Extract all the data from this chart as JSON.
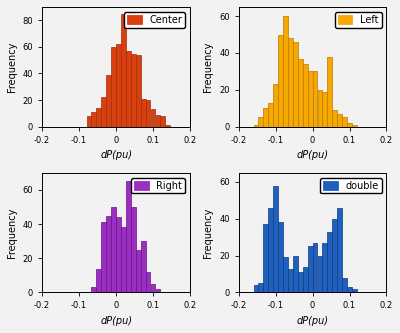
{
  "subplots": [
    {
      "label": "Center",
      "color": "#D94010",
      "edge_color": "#A03008",
      "bar_heights": [
        0,
        0,
        0,
        0,
        0,
        0,
        0,
        0,
        0,
        8,
        11,
        14,
        22,
        39,
        60,
        62,
        85,
        57,
        55,
        54,
        21,
        20,
        13,
        9,
        8,
        1,
        0,
        0,
        0,
        0
      ],
      "xlim": [
        -0.2,
        0.2
      ],
      "ylim": [
        0,
        90
      ],
      "yticks": [
        0,
        20,
        40,
        60,
        80
      ],
      "xticks": [
        -0.2,
        -0.1,
        0.0,
        0.1,
        0.2
      ]
    },
    {
      "label": "Left",
      "color": "#F5A800",
      "edge_color": "#C07800",
      "bar_heights": [
        0,
        0,
        0,
        1,
        5,
        10,
        13,
        23,
        50,
        60,
        48,
        46,
        37,
        34,
        30,
        30,
        20,
        19,
        38,
        9,
        7,
        5,
        2,
        1,
        0,
        0,
        0,
        0,
        0,
        0
      ],
      "xlim": [
        -0.2,
        0.2
      ],
      "ylim": [
        0,
        65
      ],
      "yticks": [
        0,
        20,
        40,
        60
      ],
      "xticks": [
        -0.2,
        -0.1,
        0.0,
        0.1,
        0.2
      ]
    },
    {
      "label": "Right",
      "color": "#9B30C0",
      "edge_color": "#6B1090",
      "bar_heights": [
        0,
        0,
        0,
        0,
        0,
        0,
        0,
        0,
        0,
        0,
        3,
        14,
        41,
        45,
        50,
        44,
        38,
        65,
        50,
        25,
        30,
        12,
        5,
        2,
        0,
        0,
        0,
        0,
        0,
        0
      ],
      "xlim": [
        -0.2,
        0.2
      ],
      "ylim": [
        0,
        70
      ],
      "yticks": [
        0,
        20,
        40,
        60
      ],
      "xticks": [
        -0.2,
        -0.1,
        0.0,
        0.1,
        0.2
      ]
    },
    {
      "label": "double",
      "color": "#2060C0",
      "edge_color": "#0D3D7A",
      "bar_heights": [
        0,
        0,
        0,
        4,
        5,
        37,
        46,
        58,
        38,
        19,
        13,
        20,
        11,
        14,
        25,
        27,
        20,
        27,
        33,
        40,
        46,
        8,
        3,
        2,
        0,
        0,
        0,
        0,
        0,
        0
      ],
      "xlim": [
        -0.2,
        0.2
      ],
      "ylim": [
        0,
        65
      ],
      "yticks": [
        0,
        20,
        40,
        60
      ],
      "xticks": [
        -0.2,
        -0.1,
        0.0,
        0.1,
        0.2
      ]
    }
  ],
  "xlabel": "dP(pu)",
  "ylabel": "Frequency",
  "n_bins": 30,
  "background_color": "#F2F2F2"
}
